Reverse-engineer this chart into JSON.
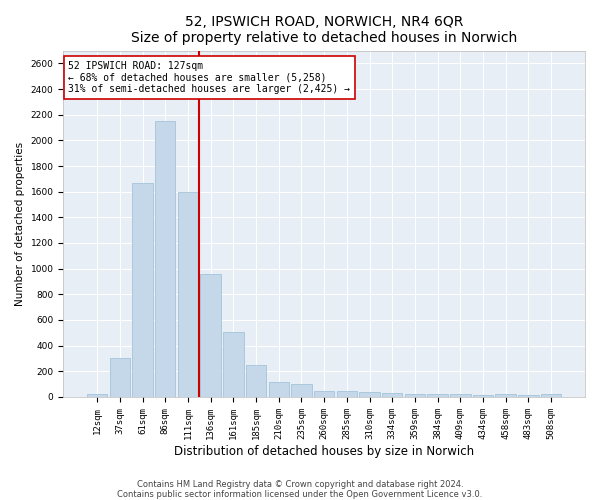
{
  "title": "52, IPSWICH ROAD, NORWICH, NR4 6QR",
  "subtitle": "Size of property relative to detached houses in Norwich",
  "xlabel": "Distribution of detached houses by size in Norwich",
  "ylabel": "Number of detached properties",
  "bar_color": "#c5d8ea",
  "bar_edgecolor": "#9bbdd4",
  "background_color": "#e8eef5",
  "categories": [
    "12sqm",
    "37sqm",
    "61sqm",
    "86sqm",
    "111sqm",
    "136sqm",
    "161sqm",
    "185sqm",
    "210sqm",
    "235sqm",
    "260sqm",
    "285sqm",
    "310sqm",
    "334sqm",
    "359sqm",
    "384sqm",
    "409sqm",
    "434sqm",
    "458sqm",
    "483sqm",
    "508sqm"
  ],
  "values": [
    25,
    300,
    1670,
    2150,
    1600,
    960,
    505,
    250,
    120,
    100,
    50,
    50,
    35,
    30,
    20,
    20,
    20,
    15,
    20,
    15,
    25
  ],
  "ylim": [
    0,
    2700
  ],
  "yticks": [
    0,
    200,
    400,
    600,
    800,
    1000,
    1200,
    1400,
    1600,
    1800,
    2000,
    2200,
    2400,
    2600
  ],
  "property_line_label": "52 IPSWICH ROAD: 127sqm",
  "annotation_line1": "← 68% of detached houses are smaller (5,258)",
  "annotation_line2": "31% of semi-detached houses are larger (2,425) →",
  "footnote1": "Contains HM Land Registry data © Crown copyright and database right 2024.",
  "footnote2": "Contains public sector information licensed under the Open Government Licence v3.0.",
  "box_color": "#cc0000",
  "vline_color": "#cc0000",
  "title_fontsize": 10,
  "subtitle_fontsize": 9,
  "xlabel_fontsize": 8.5,
  "ylabel_fontsize": 7.5,
  "tick_fontsize": 6.5,
  "annotation_fontsize": 7,
  "footnote_fontsize": 6
}
